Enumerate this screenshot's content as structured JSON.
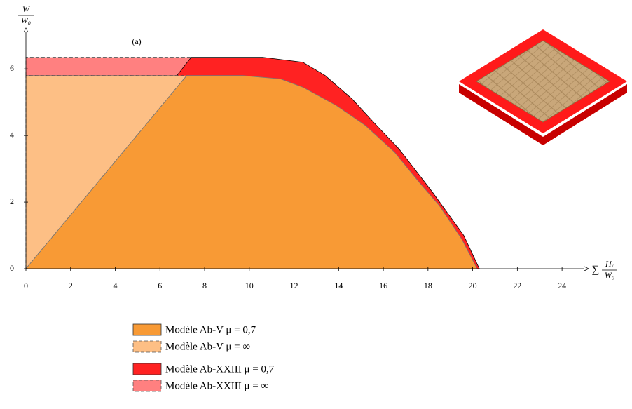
{
  "chart_data": {
    "type": "area",
    "annotation": "(a)",
    "y_label": {
      "numerator": "W",
      "denominator": "W₀"
    },
    "x_label": {
      "prefix": "∑",
      "numerator": "Hₓ",
      "denominator": "W₀"
    },
    "xlim": [
      0,
      25
    ],
    "ylim": [
      0,
      7.1
    ],
    "xticks": [
      0,
      2,
      4,
      6,
      8,
      10,
      12,
      14,
      16,
      18,
      20,
      22,
      24
    ],
    "yticks": [
      0,
      2,
      4,
      6
    ],
    "series": [
      {
        "name": "Modèle Ab-V μ = 0,7",
        "color": "#f89a35",
        "dashed": false,
        "x": [
          0,
          7.2,
          9.7,
          11.4,
          12.4,
          13.9,
          15.2,
          16.5,
          17.6,
          18.5,
          19.5,
          20.2
        ],
        "values": [
          0,
          5.8,
          5.8,
          5.7,
          5.45,
          4.9,
          4.3,
          3.5,
          2.6,
          1.9,
          0.9,
          0
        ]
      },
      {
        "name": "Modèle Ab-V μ = ∞",
        "color": "#fdbf85",
        "dashed": true,
        "x": [
          0,
          0,
          7.2
        ],
        "values": [
          0,
          5.8,
          5.8
        ]
      },
      {
        "name": "Modèle Ab-XXIII μ = 0,7",
        "color": "#ff2222",
        "dashed": false,
        "x": [
          0,
          7.4,
          10.6,
          12.4,
          13.4,
          14.6,
          15.7,
          16.7,
          18.2,
          19.6,
          20.3
        ],
        "values": [
          0,
          6.35,
          6.35,
          6.2,
          5.8,
          5.1,
          4.3,
          3.6,
          2.3,
          1.0,
          0
        ]
      },
      {
        "name": "Modèle Ab-XXIII μ = ∞",
        "color": "#ff8080",
        "dashed": true,
        "x": [
          0,
          0,
          7.4,
          7.2
        ],
        "values": [
          5.8,
          6.35,
          6.35,
          5.8
        ]
      }
    ]
  }
}
